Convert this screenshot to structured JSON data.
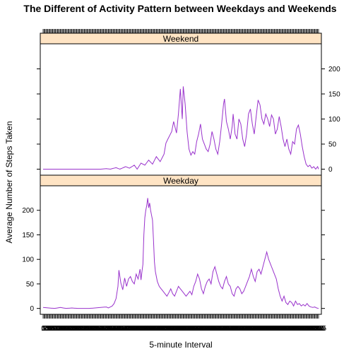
{
  "chart_data": {
    "type": "line",
    "title": "The Different of Activity Pattern between Weekdays and Weekends",
    "xlabel": "5-minute Interval",
    "ylabel": "Average Number of Steps Taken",
    "ylim": [
      -12,
      250
    ],
    "yticks": [
      0,
      50,
      100,
      150,
      200
    ],
    "line_color": "#9932CC",
    "strip_color": "#FFE4C4",
    "n_intervals": 288,
    "panels": [
      {
        "name": "Weekend",
        "keyframes": [
          [
            0,
            0
          ],
          [
            6,
            0
          ],
          [
            12,
            0
          ],
          [
            18,
            0
          ],
          [
            24,
            0
          ],
          [
            30,
            0
          ],
          [
            36,
            0
          ],
          [
            42,
            0
          ],
          [
            48,
            0
          ],
          [
            54,
            0
          ],
          [
            60,
            0
          ],
          [
            66,
            1
          ],
          [
            70,
            0
          ],
          [
            76,
            3
          ],
          [
            80,
            0
          ],
          [
            86,
            5
          ],
          [
            90,
            2
          ],
          [
            95,
            8
          ],
          [
            98,
            0
          ],
          [
            102,
            12
          ],
          [
            106,
            8
          ],
          [
            110,
            18
          ],
          [
            114,
            10
          ],
          [
            118,
            25
          ],
          [
            122,
            15
          ],
          [
            126,
            30
          ],
          [
            128,
            52
          ],
          [
            130,
            60
          ],
          [
            134,
            75
          ],
          [
            136,
            95
          ],
          [
            139,
            72
          ],
          [
            141,
            110
          ],
          [
            143,
            160
          ],
          [
            145,
            100
          ],
          [
            146,
            165
          ],
          [
            148,
            130
          ],
          [
            150,
            75
          ],
          [
            152,
            40
          ],
          [
            154,
            28
          ],
          [
            156,
            35
          ],
          [
            158,
            30
          ],
          [
            160,
            55
          ],
          [
            162,
            70
          ],
          [
            164,
            90
          ],
          [
            166,
            60
          ],
          [
            168,
            50
          ],
          [
            170,
            40
          ],
          [
            172,
            35
          ],
          [
            174,
            50
          ],
          [
            176,
            75
          ],
          [
            178,
            60
          ],
          [
            180,
            40
          ],
          [
            182,
            30
          ],
          [
            184,
            55
          ],
          [
            186,
            90
          ],
          [
            188,
            130
          ],
          [
            189,
            140
          ],
          [
            191,
            95
          ],
          [
            193,
            80
          ],
          [
            195,
            60
          ],
          [
            197,
            85
          ],
          [
            198,
            110
          ],
          [
            200,
            70
          ],
          [
            202,
            60
          ],
          [
            204,
            100
          ],
          [
            206,
            90
          ],
          [
            208,
            60
          ],
          [
            210,
            45
          ],
          [
            212,
            70
          ],
          [
            214,
            110
          ],
          [
            216,
            120
          ],
          [
            218,
            90
          ],
          [
            220,
            70
          ],
          [
            222,
            105
          ],
          [
            224,
            138
          ],
          [
            226,
            128
          ],
          [
            228,
            100
          ],
          [
            230,
            90
          ],
          [
            232,
            110
          ],
          [
            234,
            100
          ],
          [
            236,
            85
          ],
          [
            238,
            108
          ],
          [
            240,
            100
          ],
          [
            242,
            70
          ],
          [
            244,
            80
          ],
          [
            246,
            105
          ],
          [
            248,
            85
          ],
          [
            250,
            60
          ],
          [
            252,
            45
          ],
          [
            254,
            60
          ],
          [
            256,
            40
          ],
          [
            258,
            30
          ],
          [
            260,
            55
          ],
          [
            262,
            50
          ],
          [
            264,
            80
          ],
          [
            266,
            88
          ],
          [
            268,
            70
          ],
          [
            270,
            45
          ],
          [
            272,
            25
          ],
          [
            274,
            10
          ],
          [
            276,
            5
          ],
          [
            278,
            8
          ],
          [
            280,
            2
          ],
          [
            282,
            5
          ],
          [
            284,
            0
          ],
          [
            286,
            5
          ],
          [
            287,
            0
          ]
        ]
      },
      {
        "name": "Weekday",
        "keyframes": [
          [
            0,
            2
          ],
          [
            6,
            1
          ],
          [
            12,
            0
          ],
          [
            18,
            2
          ],
          [
            24,
            0
          ],
          [
            30,
            1
          ],
          [
            36,
            0
          ],
          [
            42,
            0
          ],
          [
            48,
            0
          ],
          [
            54,
            1
          ],
          [
            60,
            2
          ],
          [
            66,
            3
          ],
          [
            68,
            1
          ],
          [
            70,
            3
          ],
          [
            72,
            5
          ],
          [
            74,
            10
          ],
          [
            76,
            20
          ],
          [
            78,
            45
          ],
          [
            79,
            78
          ],
          [
            81,
            52
          ],
          [
            83,
            38
          ],
          [
            85,
            62
          ],
          [
            87,
            45
          ],
          [
            89,
            60
          ],
          [
            91,
            65
          ],
          [
            93,
            55
          ],
          [
            95,
            50
          ],
          [
            97,
            70
          ],
          [
            99,
            60
          ],
          [
            101,
            80
          ],
          [
            102,
            58
          ],
          [
            103,
            75
          ],
          [
            104,
            90
          ],
          [
            105,
            150
          ],
          [
            106,
            185
          ],
          [
            107,
            200
          ],
          [
            108,
            210
          ],
          [
            109,
            225
          ],
          [
            110,
            205
          ],
          [
            111,
            215
          ],
          [
            112,
            200
          ],
          [
            113,
            190
          ],
          [
            114,
            180
          ],
          [
            115,
            140
          ],
          [
            116,
            95
          ],
          [
            117,
            75
          ],
          [
            118,
            65
          ],
          [
            119,
            55
          ],
          [
            121,
            45
          ],
          [
            123,
            40
          ],
          [
            125,
            35
          ],
          [
            127,
            30
          ],
          [
            129,
            25
          ],
          [
            131,
            32
          ],
          [
            133,
            40
          ],
          [
            135,
            30
          ],
          [
            137,
            25
          ],
          [
            139,
            35
          ],
          [
            141,
            45
          ],
          [
            143,
            40
          ],
          [
            145,
            35
          ],
          [
            147,
            30
          ],
          [
            149,
            25
          ],
          [
            151,
            30
          ],
          [
            153,
            35
          ],
          [
            155,
            28
          ],
          [
            157,
            45
          ],
          [
            159,
            55
          ],
          [
            161,
            70
          ],
          [
            163,
            60
          ],
          [
            165,
            40
          ],
          [
            167,
            30
          ],
          [
            169,
            45
          ],
          [
            171,
            55
          ],
          [
            173,
            60
          ],
          [
            175,
            50
          ],
          [
            177,
            75
          ],
          [
            179,
            85
          ],
          [
            181,
            70
          ],
          [
            183,
            55
          ],
          [
            185,
            45
          ],
          [
            187,
            40
          ],
          [
            189,
            55
          ],
          [
            191,
            65
          ],
          [
            193,
            50
          ],
          [
            195,
            45
          ],
          [
            197,
            30
          ],
          [
            199,
            25
          ],
          [
            201,
            40
          ],
          [
            203,
            45
          ],
          [
            205,
            40
          ],
          [
            207,
            30
          ],
          [
            209,
            35
          ],
          [
            211,
            45
          ],
          [
            213,
            55
          ],
          [
            215,
            65
          ],
          [
            217,
            80
          ],
          [
            219,
            65
          ],
          [
            221,
            55
          ],
          [
            223,
            75
          ],
          [
            225,
            80
          ],
          [
            227,
            70
          ],
          [
            229,
            85
          ],
          [
            231,
            100
          ],
          [
            233,
            115
          ],
          [
            235,
            100
          ],
          [
            237,
            90
          ],
          [
            239,
            80
          ],
          [
            241,
            70
          ],
          [
            243,
            60
          ],
          [
            245,
            40
          ],
          [
            247,
            25
          ],
          [
            249,
            15
          ],
          [
            251,
            25
          ],
          [
            253,
            12
          ],
          [
            255,
            8
          ],
          [
            257,
            15
          ],
          [
            259,
            12
          ],
          [
            261,
            5
          ],
          [
            263,
            15
          ],
          [
            265,
            8
          ],
          [
            267,
            10
          ],
          [
            269,
            5
          ],
          [
            271,
            8
          ],
          [
            273,
            5
          ],
          [
            275,
            10
          ],
          [
            277,
            5
          ],
          [
            279,
            3
          ],
          [
            281,
            2
          ],
          [
            283,
            3
          ],
          [
            285,
            1
          ],
          [
            287,
            0
          ]
        ]
      }
    ],
    "xtick_labels": [
      "0",
      "5",
      "10",
      "15",
      "20",
      "25",
      "30",
      "35",
      "40",
      "45",
      "50",
      "55",
      "100",
      "105",
      "110",
      "115",
      "120",
      "125",
      "130",
      "135",
      "140",
      "145",
      "150",
      "155",
      "200",
      "205",
      "210",
      "215",
      "220",
      "225",
      "230",
      "235",
      "240",
      "245",
      "250",
      "255",
      "300",
      "305",
      "310",
      "315",
      "320",
      "325",
      "330",
      "335",
      "340",
      "345",
      "350",
      "355",
      "400",
      "405",
      "410",
      "415",
      "420",
      "425",
      "430",
      "435",
      "440",
      "445",
      "450",
      "455",
      "500",
      "505",
      "510",
      "515",
      "520",
      "525",
      "530",
      "535",
      "540",
      "545",
      "550",
      "555",
      "600",
      "605",
      "610",
      "615",
      "620",
      "625",
      "630",
      "635",
      "640",
      "645",
      "650",
      "655",
      "700",
      "705",
      "710",
      "715",
      "720",
      "725",
      "730",
      "735",
      "740",
      "745",
      "750",
      "755",
      "800",
      "805",
      "810",
      "815",
      "820",
      "825",
      "830",
      "835",
      "840",
      "845",
      "850",
      "855",
      "900",
      "905",
      "910",
      "915",
      "920",
      "925",
      "930",
      "935",
      "940",
      "945",
      "950",
      "955",
      "1000",
      "1005",
      "1010",
      "1015",
      "1020",
      "1025",
      "1030",
      "1035",
      "1040",
      "1045",
      "1050",
      "1055",
      "1100",
      "1105",
      "1110",
      "1115",
      "1120",
      "1125",
      "1130",
      "1135",
      "1140",
      "1145",
      "1150",
      "1155",
      "1200",
      "1205",
      "1210",
      "1215",
      "1220",
      "1225",
      "1230",
      "1235",
      "1240",
      "1245",
      "1250",
      "1255",
      "1300",
      "1305",
      "1310",
      "1315",
      "1320",
      "1325",
      "1330",
      "1335",
      "1340",
      "1345",
      "1350",
      "1355",
      "1400",
      "1405",
      "1410",
      "1415",
      "1420",
      "1425",
      "1430",
      "1435",
      "1440",
      "1445",
      "1450",
      "1455",
      "1500",
      "1505",
      "1510",
      "1515",
      "1520",
      "1525",
      "1530",
      "1535",
      "1540",
      "1545",
      "1550",
      "1555",
      "1600",
      "1605",
      "1610",
      "1615",
      "1620",
      "1625",
      "1630",
      "1635",
      "1640",
      "1645",
      "1650",
      "1655",
      "1700",
      "1705",
      "1710",
      "1715",
      "1720",
      "1725",
      "1730",
      "1735",
      "1740",
      "1745",
      "1750",
      "1755",
      "1800",
      "1805",
      "1810",
      "1815",
      "1820",
      "1825",
      "1830",
      "1835",
      "1840",
      "1845",
      "1850",
      "1855",
      "1900",
      "1905",
      "1910",
      "1915",
      "1920",
      "1925",
      "1930",
      "1935",
      "1940",
      "1945",
      "1950",
      "1955",
      "2000",
      "2005",
      "2010",
      "2015",
      "2020",
      "2025",
      "2030",
      "2035",
      "2040",
      "2045",
      "2050",
      "2055",
      "2100",
      "2105",
      "2110",
      "2115",
      "2120",
      "2125",
      "2130",
      "2135",
      "2140",
      "2145",
      "2150",
      "2155",
      "2200",
      "2205",
      "2210",
      "2215",
      "2220",
      "2225",
      "2230",
      "2235",
      "2240",
      "2245",
      "2250",
      "2255",
      "2300",
      "2305",
      "2310",
      "2315",
      "2320",
      "2325",
      "2330",
      "2335",
      "2340",
      "2345",
      "2350",
      "2355"
    ]
  }
}
